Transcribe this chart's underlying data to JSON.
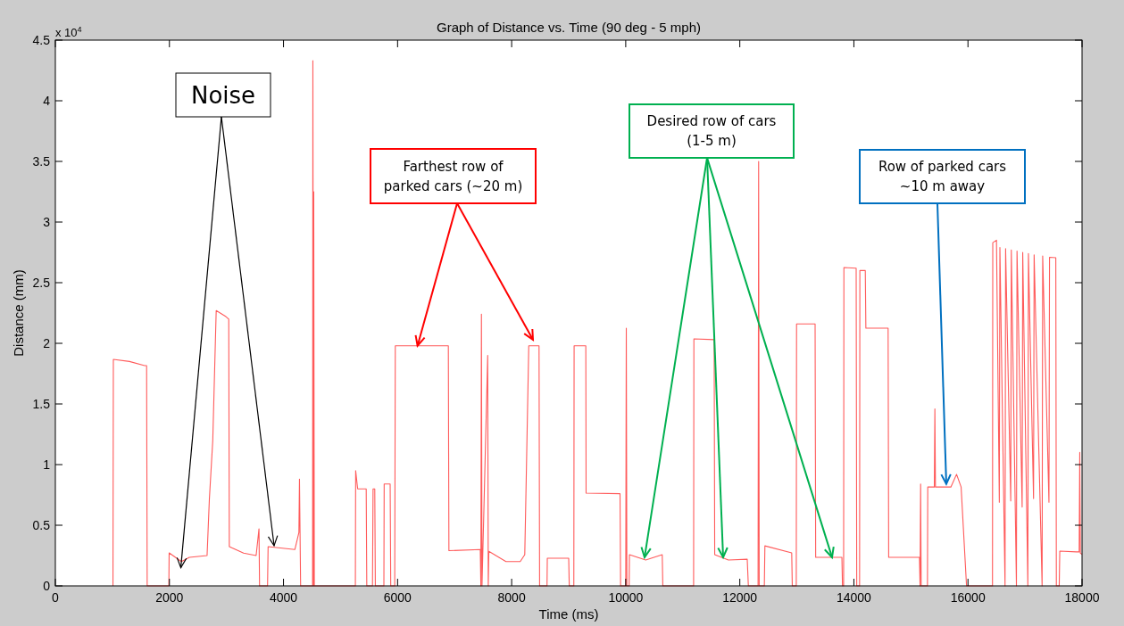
{
  "chart_data": {
    "type": "line",
    "title": "Graph of Distance vs. Time (90 deg - 5 mph)",
    "xlabel": "Time (ms)",
    "ylabel": "Distance (mm)",
    "annotations": [
      {
        "text": "Noise",
        "x": 2200,
        "y": 0.15
      },
      {
        "text": "Farthest row of parked cars (~20 m)",
        "x": 6350,
        "y": 1.98
      },
      {
        "text": "Desired row of cars (1-5 m)",
        "x": 10330,
        "y": 0.235
      },
      {
        "text": "Row of parked cars ~10 m away",
        "x": 15620,
        "y": 0.84
      },
      "x 10$^{4}$"
    ],
    "xlim": [
      0,
      18000
    ],
    "xticks": [
      0,
      2000,
      4000,
      6000,
      8000,
      10000,
      12000,
      14000,
      16000,
      18000
    ],
    "ylim": [
      0,
      4.5
    ],
    "yticks": [
      0,
      0.5,
      1,
      1.5,
      2,
      2.5,
      3,
      3.5,
      4,
      4.5
    ],
    "grid": false,
    "series": [
      {
        "color": "#ff5a5a",
        "x": [
          1010,
          1017,
          1300,
          1565,
          1600,
          1610,
          1990,
          1995,
          2210,
          2350,
          2660,
          2700,
          2760,
          2820,
          2990,
          3040,
          3050,
          3300,
          3520,
          3570,
          3580,
          3720,
          3730,
          4200,
          4270,
          4280,
          4300,
          4510,
          4515,
          4525,
          4530,
          4540,
          5260,
          5265,
          5300,
          5450,
          5460,
          5560,
          5570,
          5600,
          5610,
          5760,
          5765,
          5870,
          5880,
          5950,
          5960,
          6890,
          6900,
          7450,
          7460,
          7470,
          7480,
          7580,
          7590,
          7600,
          7900,
          8150,
          8230,
          8300,
          8480,
          8490,
          8620,
          8625,
          9000,
          9010,
          9090,
          9095,
          9300,
          9305,
          9900,
          9910,
          10000,
          10010,
          10020,
          10060,
          10065,
          10350,
          10640,
          10650,
          11190,
          11195,
          11550,
          11560,
          11800,
          12130,
          12150,
          12320,
          12330,
          12340,
          12430,
          12440,
          12910,
          12920,
          12990,
          12995,
          13320,
          13330,
          13790,
          13800,
          13820,
          13825,
          14040,
          14050,
          14100,
          14105,
          14200,
          14210,
          14600,
          14610,
          15150,
          15160,
          15170,
          15180,
          15290,
          15295,
          15410,
          15420,
          15430,
          15700,
          15800,
          15880,
          15975,
          16430,
          16435,
          16500,
          16550,
          16560,
          16650,
          16660,
          16750,
          16760,
          16850,
          16860,
          16950,
          16960,
          17050,
          17060,
          17150,
          17160,
          17300,
          17310,
          17420,
          17430,
          17540,
          17550,
          17600,
          17610,
          17900,
          17950,
          17960,
          17970,
          18000
        ],
        "values": [
          0,
          1.868,
          1.85,
          1.816,
          1.816,
          0,
          0,
          0.272,
          0.2,
          0.235,
          0.25,
          0.713,
          1.2,
          2.27,
          2.22,
          2.2,
          0.324,
          0.27,
          0.25,
          0.47,
          0,
          0,
          0.324,
          0.3,
          0.44,
          0.88,
          0,
          0,
          4.33,
          0,
          3.25,
          0,
          0,
          0.95,
          0.8,
          0.8,
          0,
          0,
          0.8,
          0.8,
          0,
          0,
          0.84,
          0.84,
          0,
          0,
          1.98,
          1.98,
          0.29,
          0.3,
          0,
          2.24,
          0,
          1.9,
          0,
          0.285,
          0.2,
          0.2,
          0.257,
          1.98,
          1.98,
          0,
          0,
          0.228,
          0.228,
          0,
          0,
          1.98,
          1.98,
          0.765,
          0.76,
          0,
          0,
          2.125,
          0,
          0,
          0.257,
          0.213,
          0.257,
          0,
          0,
          2.037,
          2.03,
          0.257,
          0.213,
          0.22,
          0,
          0,
          3.5,
          0,
          0,
          0.33,
          0.272,
          0,
          0,
          2.16,
          2.16,
          0.235,
          0.235,
          0,
          0,
          2.625,
          2.62,
          0,
          0,
          2.6,
          2.6,
          2.125,
          2.125,
          0.235,
          0.235,
          0,
          0.84,
          0,
          0,
          0.815,
          0.815,
          1.46,
          0.815,
          0.815,
          0.92,
          0.815,
          0,
          0,
          2.83,
          2.85,
          0.69,
          2.79,
          0,
          2.78,
          0.7,
          2.77,
          0,
          2.76,
          0.65,
          2.75,
          0,
          2.74,
          0.72,
          2.73,
          0,
          2.72,
          0.69,
          2.71,
          2.706,
          0,
          0,
          0.287,
          0.28,
          0.28,
          1.1,
          0.27,
          0.26
        ]
      }
    ]
  }
}
